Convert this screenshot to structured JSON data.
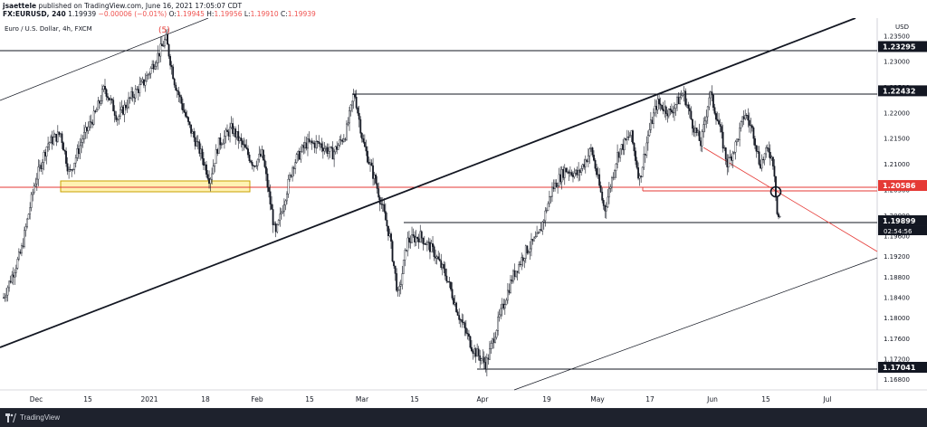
{
  "header": {
    "user": "jsaettele",
    "published": "published on TradingView.com, June 16, 2021 17:05:07 CDT",
    "ticker": "FX:EURUSD, 240",
    "last": "1.19939",
    "change": "−0.00006 (−0.01%)",
    "o_label": "O:",
    "o_value": "1.19945",
    "h_label": "H:",
    "h_value": "1.19956",
    "l_label": "L:",
    "l_value": "1.19910",
    "c_label": "C:",
    "c_value": "1.19939"
  },
  "footer": {
    "brand": "TradingView",
    "logo_icon": "tradingview-logo-icon"
  },
  "chart_data": {
    "type": "candlestick",
    "symbol_title": "Euro / U.S. Dollar, 4h, FXCM",
    "currency": "USD",
    "x_ticks": [
      "Dec",
      "15",
      "2021",
      "18",
      "Feb",
      "15",
      "Mar",
      "15",
      "Apr",
      "19",
      "May",
      "17",
      "Jun",
      "15",
      "Jul"
    ],
    "y_ticks": [
      "1.23500",
      "1.23000",
      "1.22500",
      "1.22000",
      "1.21500",
      "1.21000",
      "1.20500",
      "1.20000",
      "1.19600",
      "1.19200",
      "1.18800",
      "1.18400",
      "1.18000",
      "1.17600",
      "1.17200",
      "1.16800"
    ],
    "ylim": [
      1.166,
      1.2385
    ],
    "price_labels": [
      {
        "value": 1.23295,
        "label": "1.23295",
        "style": "dark"
      },
      {
        "value": 1.22432,
        "label": "1.22432",
        "style": "dark"
      },
      {
        "value": 1.20586,
        "label": "1.20586",
        "style": "red"
      },
      {
        "value": 1.19899,
        "label": "1.19899",
        "style": "dark",
        "countdown": "02:54:56"
      },
      {
        "value": 1.17041,
        "label": "1.17041",
        "style": "dark"
      }
    ],
    "annotations": [
      {
        "text": "(5)",
        "color": "#e53935"
      }
    ],
    "price_path": [
      [
        0.0,
        1.184
      ],
      [
        0.02,
        1.193
      ],
      [
        0.035,
        1.206
      ],
      [
        0.05,
        1.214
      ],
      [
        0.065,
        1.216
      ],
      [
        0.075,
        1.208
      ],
      [
        0.09,
        1.215
      ],
      [
        0.105,
        1.22
      ],
      [
        0.115,
        1.225
      ],
      [
        0.13,
        1.219
      ],
      [
        0.145,
        1.223
      ],
      [
        0.16,
        1.226
      ],
      [
        0.175,
        1.231
      ],
      [
        0.185,
        1.2345
      ],
      [
        0.195,
        1.226
      ],
      [
        0.21,
        1.218
      ],
      [
        0.225,
        1.212
      ],
      [
        0.235,
        1.207
      ],
      [
        0.245,
        1.214
      ],
      [
        0.26,
        1.217
      ],
      [
        0.275,
        1.213
      ],
      [
        0.285,
        1.21
      ],
      [
        0.295,
        1.212
      ],
      [
        0.31,
        1.196
      ],
      [
        0.33,
        1.21
      ],
      [
        0.345,
        1.214
      ],
      [
        0.36,
        1.214
      ],
      [
        0.375,
        1.212
      ],
      [
        0.39,
        1.216
      ],
      [
        0.4,
        1.224
      ],
      [
        0.41,
        1.214
      ],
      [
        0.425,
        1.206
      ],
      [
        0.44,
        1.196
      ],
      [
        0.45,
        1.184
      ],
      [
        0.46,
        1.195
      ],
      [
        0.475,
        1.196
      ],
      [
        0.49,
        1.193
      ],
      [
        0.505,
        1.188
      ],
      [
        0.52,
        1.18
      ],
      [
        0.535,
        1.174
      ],
      [
        0.55,
        1.171
      ],
      [
        0.565,
        1.18
      ],
      [
        0.58,
        1.188
      ],
      [
        0.595,
        1.193
      ],
      [
        0.61,
        1.196
      ],
      [
        0.625,
        1.205
      ],
      [
        0.64,
        1.209
      ],
      [
        0.655,
        1.208
      ],
      [
        0.67,
        1.213
      ],
      [
        0.685,
        1.201
      ],
      [
        0.7,
        1.212
      ],
      [
        0.715,
        1.216
      ],
      [
        0.725,
        1.207
      ],
      [
        0.735,
        1.216
      ],
      [
        0.745,
        1.222
      ],
      [
        0.76,
        1.22
      ],
      [
        0.775,
        1.224
      ],
      [
        0.785,
        1.218
      ],
      [
        0.795,
        1.214
      ],
      [
        0.805,
        1.224
      ],
      [
        0.815,
        1.218
      ],
      [
        0.825,
        1.21
      ],
      [
        0.835,
        1.214
      ],
      [
        0.845,
        1.22
      ],
      [
        0.855,
        1.216
      ],
      [
        0.862,
        1.21
      ],
      [
        0.872,
        1.213
      ],
      [
        0.878,
        1.21
      ],
      [
        0.882,
        1.2
      ],
      [
        0.885,
        1.1994
      ]
    ]
  }
}
